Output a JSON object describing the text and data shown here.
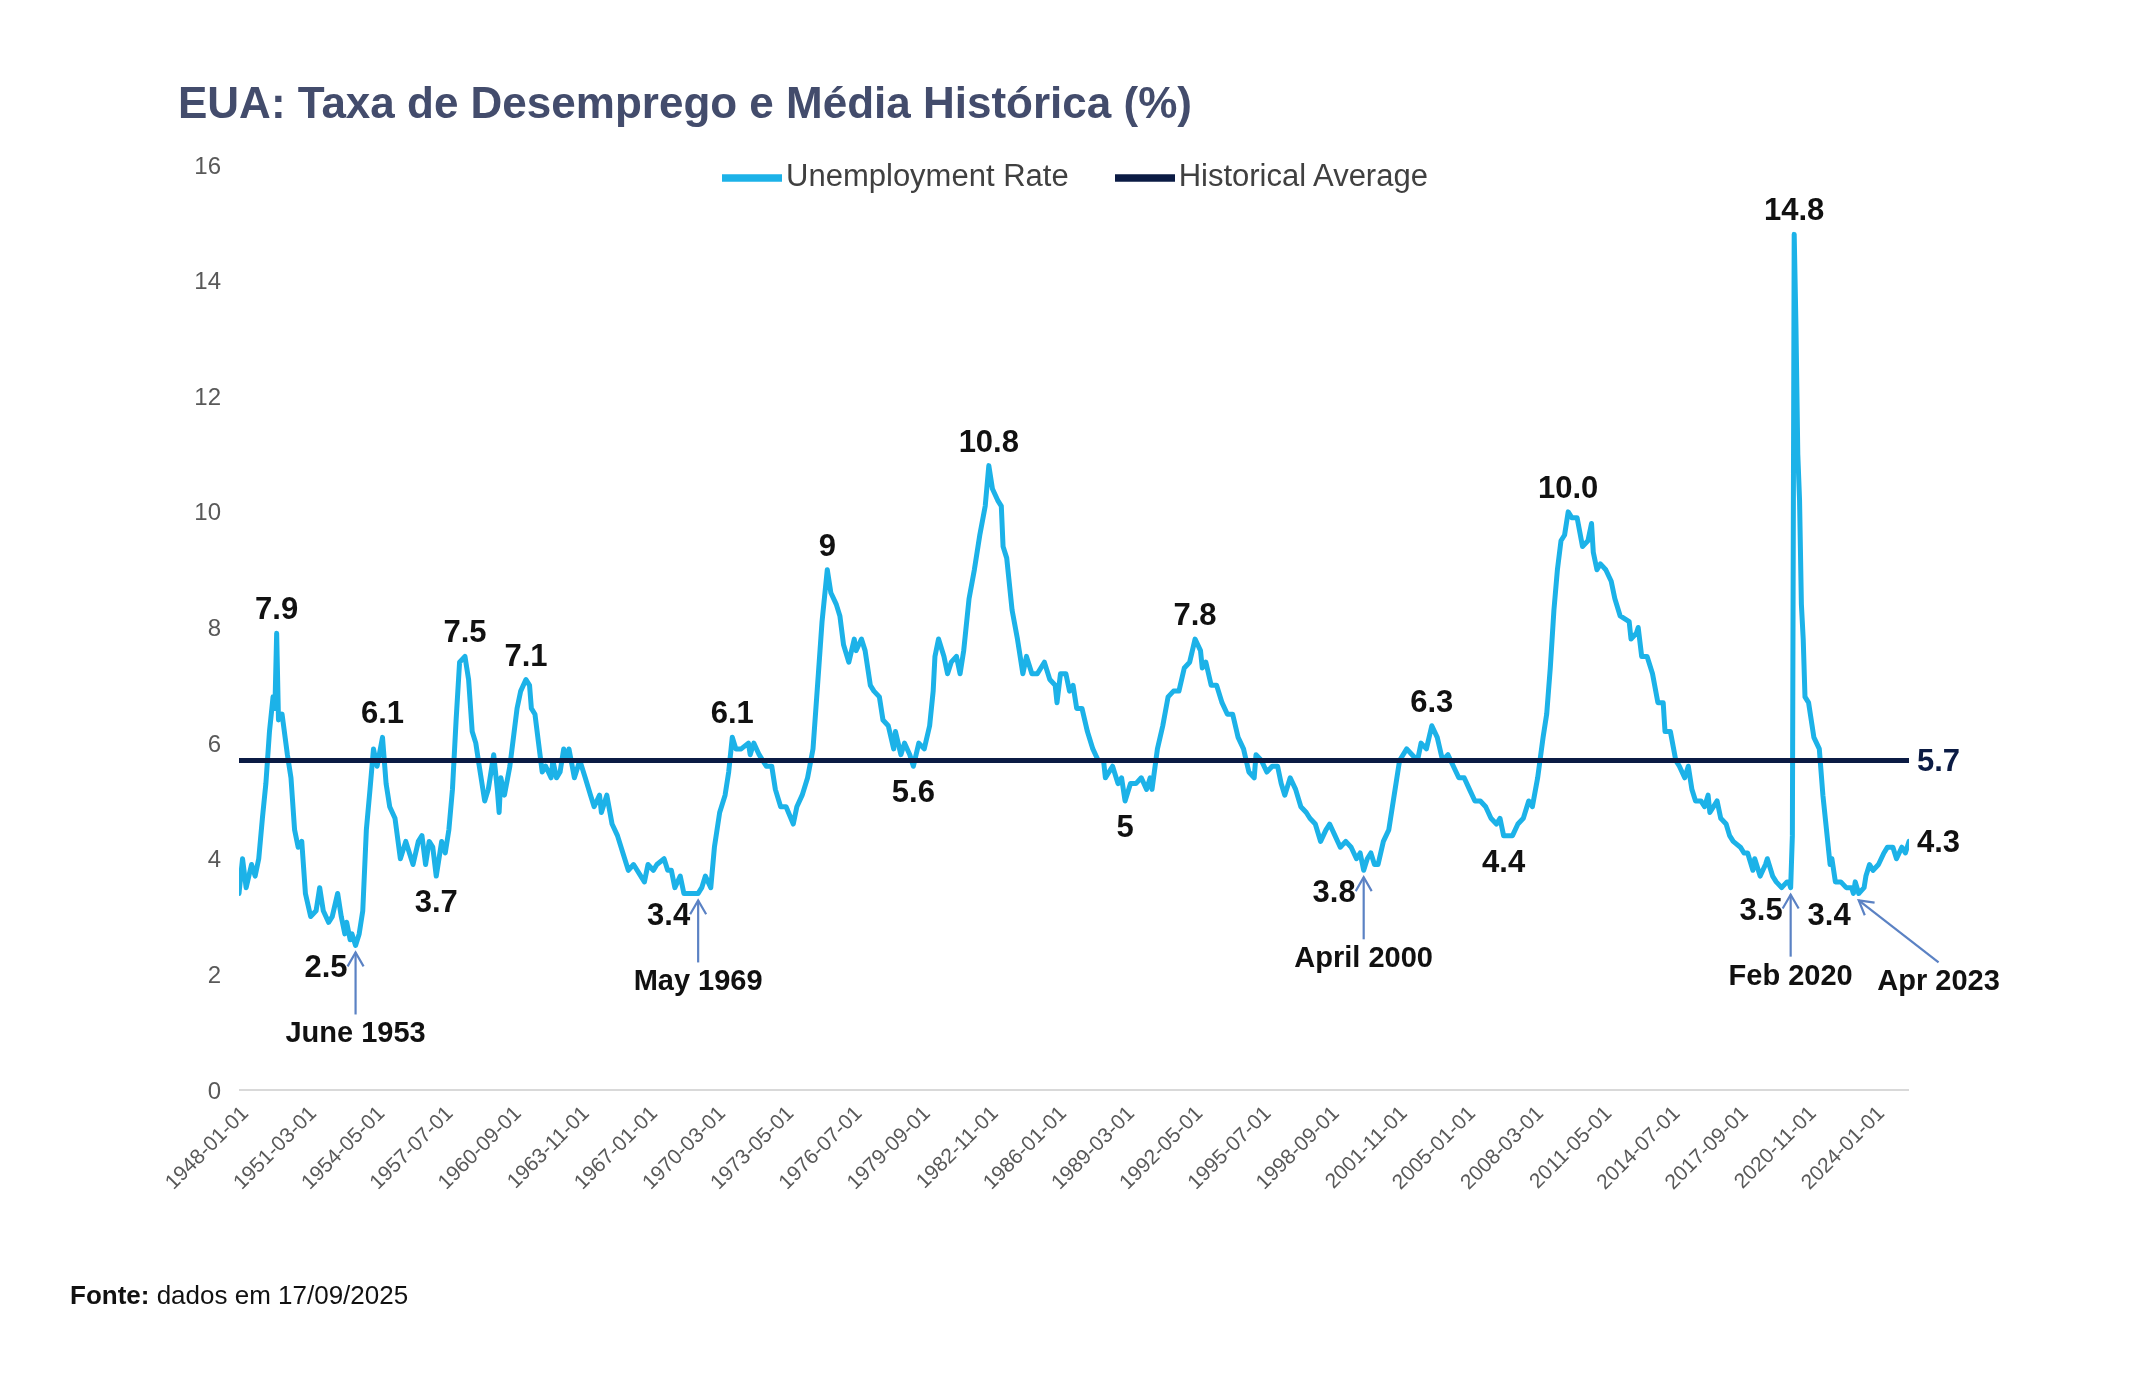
{
  "chart_data": {
    "type": "line",
    "title": "EUA: Taxa de Desemprego e Média Histórica (%)",
    "legend": "top",
    "xlim": [
      "1948-01",
      "2025-08"
    ],
    "xticks": [
      "1948-01-01",
      "1951-03-01",
      "1954-05-01",
      "1957-07-01",
      "1960-09-01",
      "1963-11-01",
      "1967-01-01",
      "1970-03-01",
      "1973-05-01",
      "1976-07-01",
      "1979-09-01",
      "1982-11-01",
      "1986-01-01",
      "1989-03-01",
      "1992-05-01",
      "1995-07-01",
      "1998-09-01",
      "2001-11-01",
      "2005-01-01",
      "2008-03-01",
      "2011-05-01",
      "2014-07-01",
      "2017-09-01",
      "2020-11-01",
      "2024-01-01"
    ],
    "ylim": [
      0,
      16
    ],
    "yticks": [
      0,
      2,
      4,
      6,
      8,
      10,
      12,
      14,
      16
    ],
    "series": [
      {
        "name": "Unemployment Rate",
        "color": "#1cb2e8",
        "x": [
          "1948-01",
          "1948-03",
          "1948-05",
          "1948-08",
          "1948-10",
          "1948-12",
          "1949-02",
          "1949-04",
          "1949-06",
          "1949-08",
          "1949-09",
          "1949-10",
          "1949-11",
          "1950-01",
          "1950-04",
          "1950-06",
          "1950-08",
          "1950-10",
          "1950-12",
          "1951-02",
          "1951-05",
          "1951-08",
          "1951-10",
          "1951-12",
          "1952-03",
          "1952-05",
          "1952-08",
          "1952-10",
          "1952-12",
          "1953-01",
          "1953-03",
          "1953-04",
          "1953-06",
          "1953-08",
          "1953-10",
          "1953-12",
          "1954-02",
          "1954-04",
          "1954-06",
          "1954-09",
          "1954-11",
          "1955-01",
          "1955-04",
          "1955-07",
          "1955-10",
          "1956-02",
          "1956-05",
          "1956-07",
          "1956-09",
          "1956-11",
          "1957-01",
          "1957-03",
          "1957-06",
          "1957-08",
          "1957-10",
          "1957-12",
          "1958-02",
          "1958-04",
          "1958-07",
          "1958-09",
          "1958-11",
          "1959-01",
          "1959-03",
          "1959-06",
          "1959-08",
          "1959-11",
          "1960-01",
          "1960-02",
          "1960-03",
          "1960-05",
          "1960-08",
          "1960-10",
          "1960-12",
          "1961-02",
          "1961-05",
          "1961-07",
          "1961-08",
          "1961-10",
          "1961-12",
          "1962-02",
          "1962-04",
          "1962-07",
          "1962-08",
          "1962-10",
          "1962-12",
          "1963-02",
          "1963-04",
          "1963-05",
          "1963-08",
          "1963-11",
          "1964-02",
          "1964-05",
          "1964-07",
          "1964-10",
          "1964-11",
          "1965-02",
          "1965-05",
          "1965-08",
          "1965-11",
          "1966-02",
          "1966-05",
          "1966-09",
          "1966-11",
          "1967-01",
          "1967-04",
          "1967-06",
          "1967-10",
          "1967-12",
          "1968-02",
          "1968-04",
          "1968-07",
          "1968-09",
          "1969-01",
          "1969-05",
          "1969-07",
          "1969-09",
          "1969-12",
          "1970-02",
          "1970-05",
          "1970-08",
          "1970-10",
          "1970-12",
          "1971-02",
          "1971-05",
          "1971-09",
          "1971-10",
          "1971-12",
          "1972-03",
          "1972-07",
          "1972-10",
          "1972-12",
          "1973-03",
          "1973-06",
          "1973-10",
          "1973-12",
          "1974-03",
          "1974-06",
          "1974-09",
          "1974-12",
          "1975-02",
          "1975-05",
          "1975-07",
          "1975-10",
          "1975-12",
          "1976-02",
          "1976-05",
          "1976-08",
          "1976-09",
          "1976-12",
          "1977-02",
          "1977-05",
          "1977-07",
          "1977-10",
          "1977-12",
          "1978-03",
          "1978-06",
          "1978-07",
          "1978-10",
          "1978-12",
          "1979-03",
          "1979-05",
          "1979-08",
          "1979-11",
          "1980-02",
          "1980-04",
          "1980-05",
          "1980-07",
          "1980-10",
          "1980-12",
          "1981-02",
          "1981-05",
          "1981-07",
          "1981-09",
          "1981-12",
          "1982-03",
          "1982-06",
          "1982-09",
          "1982-11",
          "1983-01",
          "1983-04",
          "1983-06",
          "1983-07",
          "1983-09",
          "1983-12",
          "1984-03",
          "1984-06",
          "1984-08",
          "1984-11",
          "1985-02",
          "1985-06",
          "1985-09",
          "1985-12",
          "1986-01",
          "1986-03",
          "1986-06",
          "1986-08",
          "1986-10",
          "1986-12",
          "1987-03",
          "1987-06",
          "1987-09",
          "1987-12",
          "1988-03",
          "1988-04",
          "1988-08",
          "1988-11",
          "1989-01",
          "1989-03",
          "1989-06",
          "1989-09",
          "1989-12",
          "1990-03",
          "1990-05",
          "1990-06",
          "1990-09",
          "1990-12",
          "1991-03",
          "1991-06",
          "1991-09",
          "1991-12",
          "1992-03",
          "1992-06",
          "1992-09",
          "1992-10",
          "1992-12",
          "1993-03",
          "1993-06",
          "1993-09",
          "1993-12",
          "1994-03",
          "1994-06",
          "1994-09",
          "1994-12",
          "1995-03",
          "1995-04",
          "1995-07",
          "1995-10",
          "1996-01",
          "1996-04",
          "1996-06",
          "1996-08",
          "1996-11",
          "1997-02",
          "1997-05",
          "1997-08",
          "1997-10",
          "1998-01",
          "1998-04",
          "1998-07",
          "1998-09",
          "1998-12",
          "1999-03",
          "1999-06",
          "1999-09",
          "1999-12",
          "2000-02",
          "2000-04",
          "2000-06",
          "2000-08",
          "2000-10",
          "2000-12",
          "2001-03",
          "2001-06",
          "2001-08",
          "2001-10",
          "2001-12",
          "2002-04",
          "2002-07",
          "2002-10",
          "2002-12",
          "2003-03",
          "2003-06",
          "2003-09",
          "2003-12",
          "2004-03",
          "2004-06",
          "2004-09",
          "2004-12",
          "2005-03",
          "2005-06",
          "2005-09",
          "2005-12",
          "2006-03",
          "2006-06",
          "2006-08",
          "2006-10",
          "2006-12",
          "2007-03",
          "2007-06",
          "2007-09",
          "2007-12",
          "2008-02",
          "2008-05",
          "2008-08",
          "2008-10",
          "2008-12",
          "2009-02",
          "2009-04",
          "2009-06",
          "2009-08",
          "2009-10",
          "2009-12",
          "2010-03",
          "2010-06",
          "2010-09",
          "2010-11",
          "2010-12",
          "2011-02",
          "2011-04",
          "2011-07",
          "2011-10",
          "2011-12",
          "2012-03",
          "2012-08",
          "2012-09",
          "2012-12",
          "2013-01",
          "2013-03",
          "2013-06",
          "2013-09",
          "2013-12",
          "2014-03",
          "2014-04",
          "2014-07",
          "2014-10",
          "2014-12",
          "2015-03",
          "2015-05",
          "2015-07",
          "2015-09",
          "2015-12",
          "2016-02",
          "2016-04",
          "2016-05",
          "2016-09",
          "2016-11",
          "2017-02",
          "2017-04",
          "2017-06",
          "2017-10",
          "2017-12",
          "2018-02",
          "2018-05",
          "2018-06",
          "2018-09",
          "2018-12",
          "2019-01",
          "2019-04",
          "2019-06",
          "2019-09",
          "2019-12",
          "2020-01",
          "2020-02",
          "2020-03",
          "2020-04",
          "2020-05",
          "2020-06",
          "2020-07",
          "2020-08",
          "2020-09",
          "2020-10",
          "2020-12",
          "2021-03",
          "2021-06",
          "2021-08",
          "2021-10",
          "2021-12",
          "2022-01",
          "2022-03",
          "2022-06",
          "2022-09",
          "2022-12",
          "2023-01",
          "2023-02",
          "2023-04",
          "2023-07",
          "2023-08",
          "2023-10",
          "2023-12",
          "2024-03",
          "2024-06",
          "2024-08",
          "2024-11",
          "2025-01",
          "2025-04",
          "2025-06",
          "2025-08"
        ],
        "values": [
          3.4,
          4.0,
          3.5,
          3.9,
          3.7,
          4.0,
          4.7,
          5.3,
          6.2,
          6.8,
          6.6,
          7.9,
          6.4,
          6.5,
          5.8,
          5.4,
          4.5,
          4.2,
          4.3,
          3.4,
          3.0,
          3.1,
          3.5,
          3.1,
          2.9,
          3.0,
          3.4,
          3.0,
          2.7,
          2.9,
          2.6,
          2.7,
          2.5,
          2.7,
          3.1,
          4.5,
          5.2,
          5.9,
          5.6,
          6.1,
          5.3,
          4.9,
          4.7,
          4.0,
          4.3,
          3.9,
          4.3,
          4.4,
          3.9,
          4.3,
          4.2,
          3.7,
          4.3,
          4.1,
          4.5,
          5.2,
          6.4,
          7.4,
          7.5,
          7.1,
          6.2,
          6.0,
          5.6,
          5.0,
          5.2,
          5.8,
          5.2,
          4.8,
          5.4,
          5.1,
          5.6,
          6.1,
          6.6,
          6.9,
          7.1,
          7.0,
          6.6,
          6.5,
          6.0,
          5.5,
          5.6,
          5.4,
          5.7,
          5.4,
          5.5,
          5.9,
          5.7,
          5.9,
          5.4,
          5.7,
          5.4,
          5.1,
          4.9,
          5.1,
          4.8,
          5.1,
          4.6,
          4.4,
          4.1,
          3.8,
          3.9,
          3.7,
          3.6,
          3.9,
          3.8,
          3.9,
          4.0,
          3.8,
          3.8,
          3.5,
          3.7,
          3.4,
          3.4,
          3.4,
          3.5,
          3.7,
          3.5,
          4.2,
          4.8,
          5.1,
          5.5,
          6.1,
          5.9,
          5.9,
          6.0,
          5.8,
          6.0,
          5.8,
          5.6,
          5.6,
          5.2,
          4.9,
          4.9,
          4.6,
          4.9,
          5.1,
          5.4,
          5.9,
          7.2,
          8.1,
          9.0,
          8.6,
          8.4,
          8.2,
          7.7,
          7.4,
          7.8,
          7.6,
          7.8,
          7.6,
          7.0,
          6.9,
          6.8,
          6.4,
          6.3,
          5.9,
          6.2,
          5.8,
          6.0,
          5.8,
          5.6,
          6.0,
          5.9,
          6.3,
          6.9,
          7.5,
          7.8,
          7.5,
          7.2,
          7.4,
          7.5,
          7.2,
          7.6,
          8.5,
          9.0,
          9.6,
          10.1,
          10.8,
          10.4,
          10.2,
          10.1,
          9.4,
          9.2,
          8.3,
          7.8,
          7.2,
          7.5,
          7.2,
          7.2,
          7.4,
          7.1,
          7.0,
          6.7,
          7.2,
          7.2,
          6.9,
          7.0,
          6.6,
          6.6,
          6.2,
          5.9,
          5.7,
          5.7,
          5.4,
          5.6,
          5.3,
          5.4,
          5.0,
          5.3,
          5.3,
          5.4,
          5.2,
          5.4,
          5.2,
          5.9,
          6.3,
          6.8,
          6.9,
          6.9,
          7.3,
          7.4,
          7.8,
          7.6,
          7.3,
          7.4,
          7.0,
          7.0,
          6.7,
          6.5,
          6.5,
          6.1,
          5.9,
          5.5,
          5.4,
          5.8,
          5.7,
          5.5,
          5.6,
          5.6,
          5.3,
          5.1,
          5.4,
          5.2,
          4.9,
          4.8,
          4.7,
          4.6,
          4.3,
          4.5,
          4.6,
          4.4,
          4.2,
          4.3,
          4.2,
          4.0,
          4.1,
          3.8,
          4.0,
          4.1,
          3.9,
          3.9,
          4.3,
          4.5,
          4.9,
          5.3,
          5.7,
          5.9,
          5.8,
          5.7,
          6.0,
          5.9,
          6.3,
          6.1,
          5.7,
          5.8,
          5.6,
          5.4,
          5.4,
          5.2,
          5.0,
          5.0,
          4.9,
          4.7,
          4.6,
          4.7,
          4.4,
          4.4,
          4.4,
          4.6,
          4.7,
          5.0,
          4.9,
          5.4,
          6.1,
          6.5,
          7.3,
          8.3,
          9.0,
          9.5,
          9.6,
          10.0,
          9.9,
          9.9,
          9.4,
          9.5,
          9.8,
          9.3,
          9.0,
          9.1,
          9.0,
          8.8,
          8.5,
          8.2,
          8.1,
          7.8,
          7.9,
          8.0,
          7.5,
          7.5,
          7.2,
          6.7,
          6.7,
          6.2,
          6.2,
          5.7,
          5.6,
          5.4,
          5.6,
          5.2,
          5.0,
          5.0,
          4.9,
          5.1,
          4.8,
          5.0,
          4.7,
          4.6,
          4.4,
          4.3,
          4.2,
          4.1,
          4.1,
          3.8,
          4.0,
          3.7,
          3.9,
          4.0,
          3.7,
          3.6,
          3.5,
          3.6,
          3.6,
          3.5,
          4.4,
          14.8,
          13.2,
          11.0,
          10.2,
          8.4,
          7.8,
          6.8,
          6.7,
          6.1,
          5.9,
          5.1,
          4.5,
          3.9,
          4.0,
          3.6,
          3.6,
          3.5,
          3.5,
          3.4,
          3.6,
          3.4,
          3.5,
          3.7,
          3.9,
          3.8,
          3.9,
          4.1,
          4.2,
          4.2,
          4.0,
          4.2,
          4.1,
          4.3
        ],
        "value_labels": [
          null,
          null,
          null,
          null,
          null,
          null,
          null,
          null,
          null,
          null,
          null,
          "7.9",
          null,
          null,
          null,
          null,
          null,
          null,
          null,
          null,
          null,
          null,
          null,
          null,
          null,
          null,
          null,
          null,
          null,
          null,
          null,
          null,
          "2.5",
          null,
          null,
          null,
          null,
          null,
          null,
          "6.1",
          null,
          null,
          null,
          null,
          null,
          null,
          null,
          null,
          null,
          null,
          null,
          "3.7",
          null,
          null,
          null,
          null,
          null,
          null,
          "7.5",
          null,
          null,
          null,
          null,
          null,
          null,
          null,
          null,
          null,
          null,
          null,
          null,
          null,
          null,
          null,
          "7.1",
          null,
          null,
          null,
          null,
          null,
          null,
          null,
          null,
          null,
          null,
          null,
          null,
          null,
          null,
          null,
          null,
          null,
          null,
          null,
          null,
          null,
          null,
          null,
          null,
          null,
          null,
          null,
          null,
          null,
          null,
          null,
          null,
          null,
          null,
          null,
          null,
          null,
          null,
          "3.4",
          null,
          null,
          null,
          null,
          null,
          null,
          null,
          "6.1",
          null,
          null,
          null,
          null,
          null,
          null,
          null,
          null,
          null,
          null,
          null,
          null,
          null,
          null,
          null,
          null,
          null,
          null,
          "9",
          null,
          null,
          null,
          null,
          null,
          null,
          null,
          null,
          null,
          null,
          null,
          null,
          null,
          null,
          null,
          null,
          null,
          null,
          null,
          "5.6",
          null,
          null,
          null,
          null,
          null,
          null,
          null,
          null,
          null,
          null,
          null,
          null,
          null,
          null,
          null,
          null,
          "10.8",
          null,
          null,
          null,
          null,
          null,
          null,
          null,
          null,
          null,
          null,
          null,
          null,
          null,
          null,
          null,
          null,
          null,
          null,
          null,
          null,
          null,
          null,
          null,
          null,
          null,
          null,
          null,
          null,
          null,
          "5",
          null,
          null,
          null,
          null,
          null,
          null,
          null,
          null,
          null,
          null,
          null,
          null,
          null,
          "7.8",
          null,
          null,
          null,
          null,
          null,
          null,
          null,
          null,
          null,
          null,
          null,
          null,
          null,
          null,
          null,
          null,
          null,
          null,
          null,
          null,
          null,
          null,
          null,
          null,
          null,
          null,
          null,
          null,
          null,
          null,
          null,
          null,
          null,
          null,
          "3.8",
          null,
          null,
          null,
          null,
          null,
          null,
          null,
          null,
          null,
          null,
          null,
          null,
          null,
          null,
          "6.3",
          null,
          null,
          null,
          null,
          null,
          null,
          null,
          null,
          null,
          null,
          null,
          null,
          null,
          "4.4",
          null,
          null,
          null,
          null,
          null,
          null,
          null,
          null,
          null,
          null,
          null,
          null,
          null,
          null,
          "10.0",
          null,
          null,
          null,
          null,
          null,
          null,
          null,
          null,
          null,
          null,
          null,
          null,
          null,
          null,
          null,
          null,
          null,
          null,
          null,
          null,
          null,
          null,
          null,
          null,
          null,
          null,
          null,
          null,
          null,
          null,
          null,
          null,
          null,
          null,
          null,
          null,
          null,
          null,
          null,
          null,
          null,
          null,
          null,
          null,
          null,
          null,
          null,
          null,
          null,
          null,
          null,
          "3.5",
          null,
          "14.8",
          null,
          null,
          null,
          null,
          null,
          null,
          null,
          null,
          null,
          null,
          null,
          null,
          null,
          null,
          null,
          null,
          null,
          null,
          null,
          "3.4",
          null,
          null,
          null,
          null,
          null,
          null,
          null,
          null,
          null,
          null,
          null,
          "4.3"
        ]
      },
      {
        "name": "Historical Average",
        "color": "#0b1b44",
        "x": [
          "1948-01",
          "2025-08"
        ],
        "values": [
          5.7,
          5.7
        ],
        "value_labels": [
          null,
          "5.7"
        ]
      }
    ],
    "annotations": [
      {
        "text": "June 1953",
        "x": "1953-06",
        "y": 2.5
      },
      {
        "text": "May 1969",
        "x": "1969-05",
        "y": 3.4
      },
      {
        "text": "April 2000",
        "x": "2000-04",
        "y": 3.8
      },
      {
        "text": "Feb 2020",
        "x": "2020-02",
        "y": 3.5
      },
      {
        "text": "Apr 2023",
        "x": "2023-04",
        "y": 3.4
      },
      "Fonte: dados em 17/09/2025"
    ]
  }
}
